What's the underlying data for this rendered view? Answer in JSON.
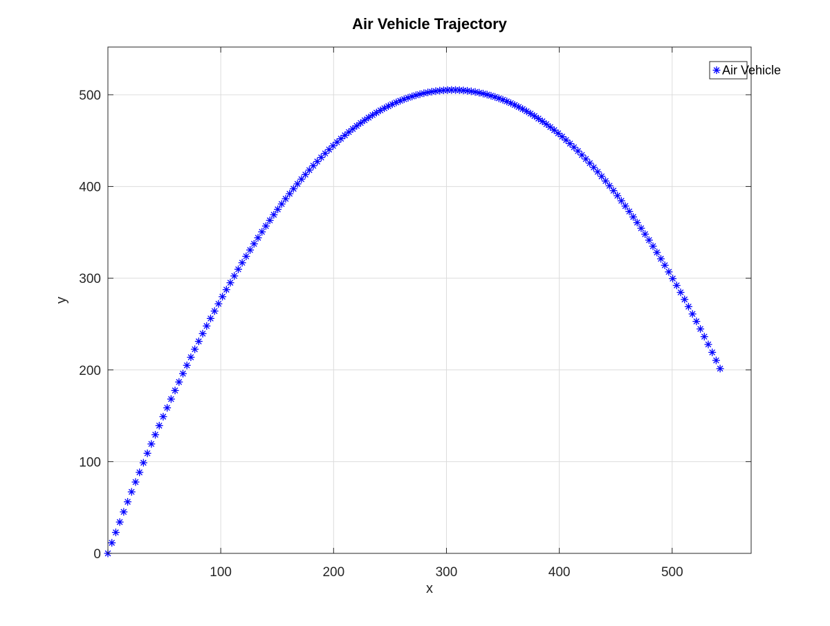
{
  "chart_data": {
    "type": "scatter",
    "title": "Air Vehicle Trajectory",
    "xlabel": "x",
    "ylabel": "y",
    "xlim": [
      0,
      570
    ],
    "ylim": [
      0,
      552
    ],
    "xticks": [
      100,
      200,
      300,
      400,
      500
    ],
    "xtick_labels": [
      "100",
      "200",
      "300",
      "400",
      "500"
    ],
    "yticks": [
      0,
      100,
      200,
      300,
      400,
      500
    ],
    "ytick_labels": [
      "0",
      "100",
      "200",
      "300",
      "400",
      "500"
    ],
    "grid": true,
    "legend_position": "top-right",
    "series": [
      {
        "name": "Air Vehicle",
        "marker": "asterisk",
        "color": "#0000ff",
        "curve": {
          "x_start": 0,
          "x_end": 545,
          "x_step": 3.5,
          "y_at_x0": 0,
          "y_at_x300": 505,
          "y_at_x545": 195
        }
      }
    ]
  }
}
